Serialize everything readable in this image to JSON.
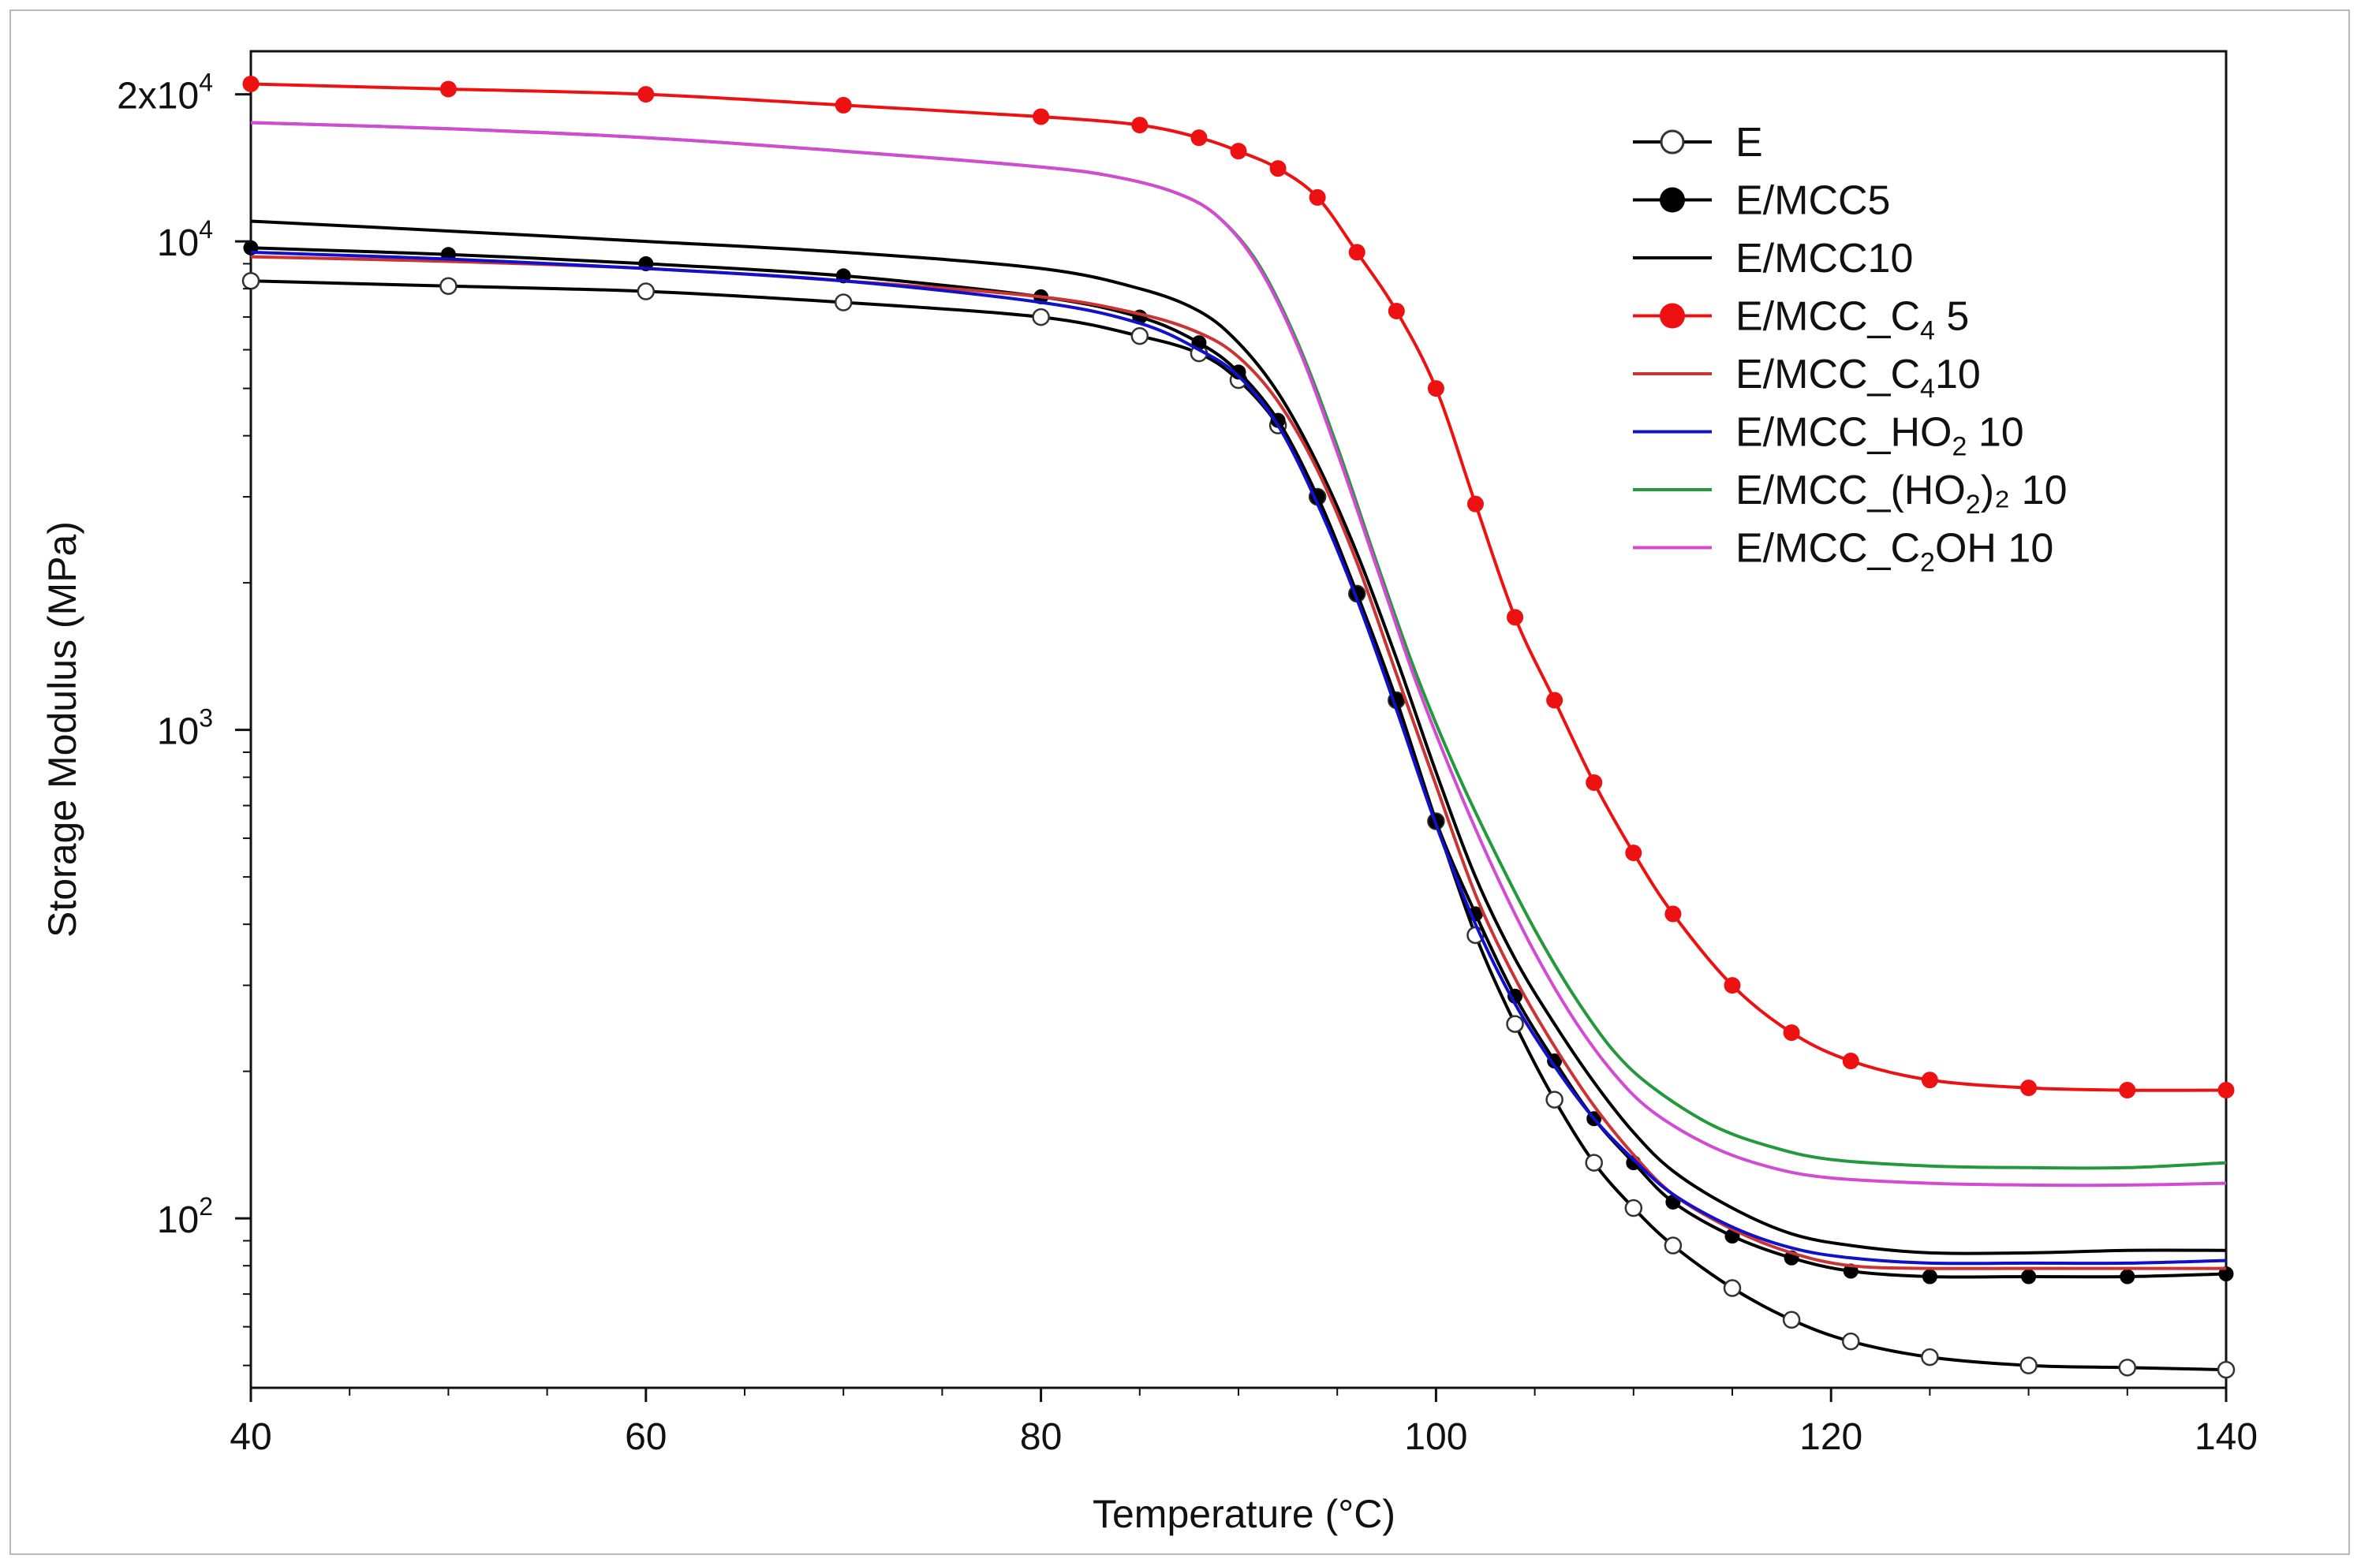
{
  "chart_data": {
    "type": "line",
    "title": "",
    "xlabel": "Temperature (°C)",
    "ylabel": "Storage Modulus (MPa)",
    "xlim": [
      40,
      140
    ],
    "ylim": [
      45,
      24500
    ],
    "yscale": "log",
    "x_ticks": [
      {
        "value": 40,
        "label": "40"
      },
      {
        "value": 60,
        "label": "60"
      },
      {
        "value": 80,
        "label": "80"
      },
      {
        "value": 100,
        "label": "100"
      },
      {
        "value": 120,
        "label": "120"
      },
      {
        "value": 140,
        "label": "140"
      }
    ],
    "y_ticks": [
      {
        "value": 100,
        "label": "10",
        "exp": "2"
      },
      {
        "value": 1000,
        "label": "10",
        "exp": "3"
      },
      {
        "value": 10000,
        "label": "10",
        "exp": "4"
      },
      {
        "value": 20000,
        "label": "2x10",
        "exp": "4"
      }
    ],
    "legend_position": "top-right",
    "series": [
      {
        "name": "E",
        "sub": "",
        "suffix": "",
        "color": "#000000",
        "marker": "open-circle",
        "x": [
          40,
          50,
          60,
          70,
          80,
          85,
          88,
          90,
          92,
          94,
          96,
          98,
          100,
          102,
          104,
          106,
          108,
          110,
          112,
          115,
          118,
          121,
          125,
          130,
          135,
          140
        ],
        "y": [
          8300,
          8100,
          7900,
          7500,
          7000,
          6400,
          5900,
          5200,
          4200,
          3000,
          1900,
          1150,
          650,
          380,
          250,
          175,
          130,
          105,
          88,
          72,
          62,
          56,
          52,
          50,
          49.5,
          49
        ]
      },
      {
        "name": "E/MCC5",
        "sub": "",
        "suffix": "",
        "color": "#000000",
        "marker": "filled-circle",
        "x": [
          40,
          50,
          60,
          70,
          80,
          85,
          88,
          90,
          92,
          94,
          96,
          98,
          100,
          102,
          104,
          106,
          108,
          110,
          112,
          115,
          118,
          121,
          125,
          130,
          135,
          140
        ],
        "y": [
          9700,
          9400,
          9000,
          8500,
          7700,
          7000,
          6200,
          5400,
          4300,
          3000,
          1900,
          1150,
          650,
          420,
          285,
          210,
          160,
          130,
          108,
          92,
          83,
          78,
          76,
          76,
          76,
          77
        ]
      },
      {
        "name": "E/MCC10",
        "sub": "",
        "suffix": "",
        "color": "#000000",
        "marker": "",
        "x": [
          40,
          50,
          60,
          70,
          80,
          85,
          88,
          90,
          92,
          94,
          96,
          98,
          100,
          102,
          104,
          106,
          108,
          110,
          112,
          115,
          118,
          121,
          125,
          130,
          135,
          140
        ],
        "y": [
          11000,
          10500,
          10000,
          9500,
          8800,
          8000,
          7200,
          6200,
          4900,
          3500,
          2300,
          1400,
          820,
          500,
          340,
          250,
          190,
          150,
          125,
          105,
          93,
          88,
          85,
          85,
          86,
          86
        ]
      },
      {
        "name": "E/MCC_C",
        "sub": "4",
        "suffix": " 5",
        "color": "#ee1111",
        "marker": "filled-circle",
        "x": [
          40,
          50,
          60,
          70,
          80,
          85,
          88,
          90,
          92,
          94,
          96,
          98,
          100,
          102,
          104,
          106,
          108,
          110,
          112,
          115,
          118,
          121,
          125,
          130,
          135,
          140
        ],
        "y": [
          21000,
          20500,
          20000,
          19000,
          18000,
          17300,
          16300,
          15300,
          14100,
          12300,
          9500,
          7200,
          5000,
          2900,
          1700,
          1150,
          780,
          560,
          420,
          300,
          240,
          210,
          192,
          185,
          183,
          183
        ]
      },
      {
        "name": "E/MCC_C",
        "sub": "4",
        "suffix": "10",
        "color": "#cc3333",
        "marker": "",
        "x": [
          40,
          50,
          60,
          70,
          80,
          85,
          88,
          90,
          92,
          94,
          96,
          98,
          100,
          102,
          104,
          106,
          108,
          110,
          112,
          115,
          118,
          121,
          125,
          130,
          135,
          140
        ],
        "y": [
          9300,
          9100,
          8800,
          8300,
          7700,
          7100,
          6500,
          5800,
          4700,
          3400,
          2200,
          1300,
          770,
          460,
          310,
          225,
          170,
          135,
          112,
          95,
          85,
          80,
          79,
          79,
          79,
          79
        ]
      },
      {
        "name": "E/MCC_HO",
        "sub": "2",
        "suffix": " 10",
        "color": "#1111cc",
        "marker": "",
        "x": [
          40,
          50,
          60,
          70,
          80,
          85,
          88,
          90,
          92,
          94,
          96,
          98,
          100,
          102,
          104,
          106,
          108,
          110,
          112,
          115,
          118,
          121,
          125,
          130,
          135,
          140
        ],
        "y": [
          9500,
          9200,
          8800,
          8300,
          7500,
          6800,
          6000,
          5300,
          4200,
          2900,
          1850,
          1100,
          640,
          400,
          275,
          205,
          160,
          132,
          112,
          96,
          87,
          83,
          81,
          81,
          81,
          82
        ]
      },
      {
        "name": "E/MCC_(HO",
        "sub": "2",
        "suffix": ")₂ 10",
        "color": "#22993a",
        "marker": "",
        "x": [
          40,
          50,
          60,
          70,
          80,
          84,
          87,
          89,
          91,
          93,
          95,
          97,
          99,
          101,
          103,
          105,
          107,
          109,
          111,
          114,
          117,
          120,
          125,
          130,
          135,
          140
        ],
        "y": [
          17500,
          17000,
          16300,
          15300,
          14200,
          13500,
          12500,
          11200,
          9000,
          6200,
          3800,
          2200,
          1300,
          830,
          560,
          390,
          285,
          220,
          185,
          155,
          140,
          132,
          128,
          127,
          127,
          130
        ]
      },
      {
        "name": "E/MCC_C",
        "sub": "2",
        "suffix": "OH 10",
        "color": "#d34ad3",
        "marker": "",
        "x": [
          40,
          50,
          60,
          70,
          80,
          84,
          87,
          89,
          91,
          93,
          95,
          97,
          99,
          101,
          103,
          105,
          107,
          109,
          111,
          114,
          117,
          120,
          125,
          130,
          135,
          140
        ],
        "y": [
          17500,
          17000,
          16300,
          15300,
          14200,
          13500,
          12500,
          11200,
          8900,
          6100,
          3700,
          2150,
          1250,
          780,
          510,
          350,
          255,
          198,
          165,
          140,
          127,
          121,
          118,
          117,
          117,
          118
        ]
      }
    ]
  }
}
